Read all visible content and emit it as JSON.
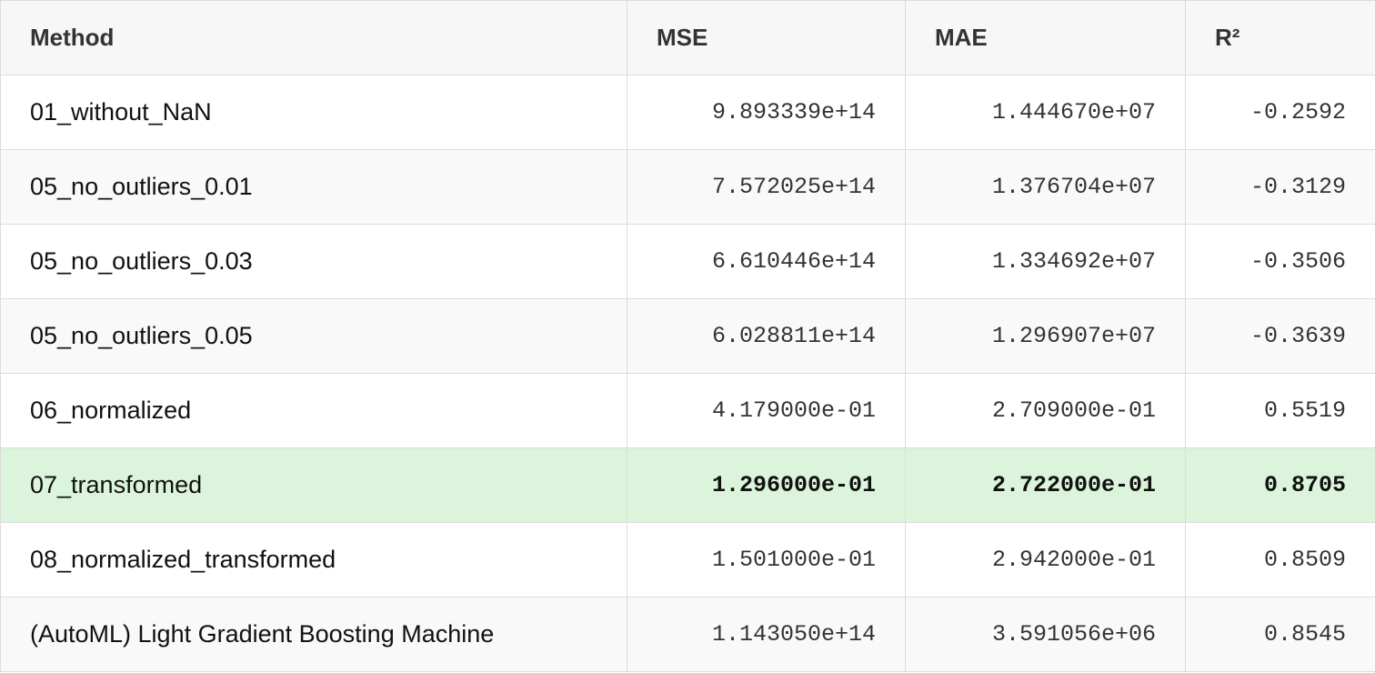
{
  "table": {
    "headers": [
      "Method",
      "MSE",
      "MAE",
      "R²"
    ],
    "highlight_color": "#dcf4dc",
    "highlighted_row": "07_transformed",
    "rows": [
      {
        "method": "01_without_NaN",
        "mse": "9.893339e+14",
        "mae": "1.444670e+07",
        "r2": "-0.2592"
      },
      {
        "method": "05_no_outliers_0.01",
        "mse": "7.572025e+14",
        "mae": "1.376704e+07",
        "r2": "-0.3129"
      },
      {
        "method": "05_no_outliers_0.03",
        "mse": "6.610446e+14",
        "mae": "1.334692e+07",
        "r2": "-0.3506"
      },
      {
        "method": "05_no_outliers_0.05",
        "mse": "6.028811e+14",
        "mae": "1.296907e+07",
        "r2": "-0.3639"
      },
      {
        "method": "06_normalized",
        "mse": "4.179000e-01",
        "mae": "2.709000e-01",
        "r2": "0.5519"
      },
      {
        "method": "07_transformed",
        "mse": "1.296000e-01",
        "mae": "2.722000e-01",
        "r2": "0.8705"
      },
      {
        "method": "08_normalized_transformed",
        "mse": "1.501000e-01",
        "mae": "2.942000e-01",
        "r2": "0.8509"
      },
      {
        "method": "(AutoML) Light Gradient Boosting Machine",
        "mse": "1.143050e+14",
        "mae": "3.591056e+06",
        "r2": "0.8545"
      }
    ]
  }
}
